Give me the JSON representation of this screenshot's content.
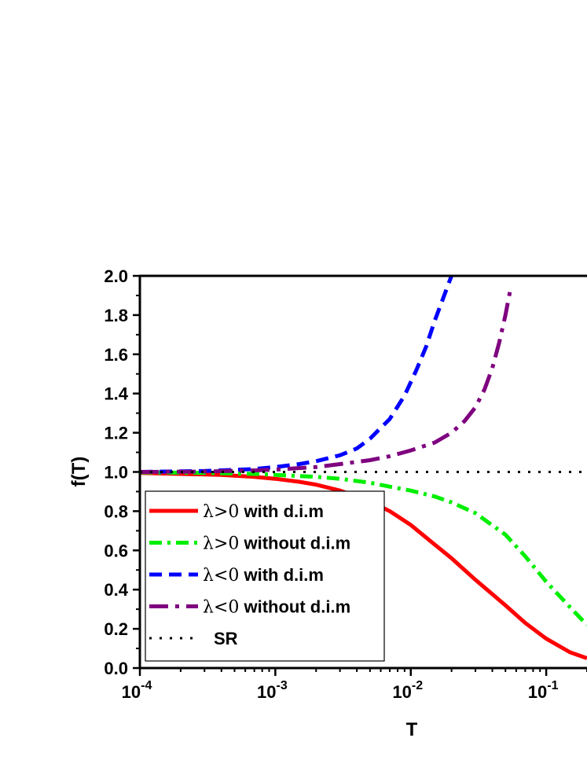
{
  "chart_data": {
    "type": "line",
    "xlabel": "T",
    "ylabel": "f(T)",
    "x_scale": "log",
    "xlim": [
      0.0001,
      0.2
    ],
    "ylim": [
      0.0,
      2.0
    ],
    "x_ticks": [
      {
        "value": 0.0001,
        "base": "10",
        "exp": "-4"
      },
      {
        "value": 0.001,
        "base": "10",
        "exp": "-3"
      },
      {
        "value": 0.01,
        "base": "10",
        "exp": "-2"
      },
      {
        "value": 0.1,
        "base": "10",
        "exp": "-1"
      }
    ],
    "y_ticks": [
      "0.0",
      "0.2",
      "0.4",
      "0.6",
      "0.8",
      "1.0",
      "1.2",
      "1.4",
      "1.6",
      "1.8",
      "2.0"
    ],
    "legend_position": "bottom-left",
    "series": [
      {
        "name": "λ>0 with d.i.m",
        "legend_symbol": "λ>0",
        "legend_rest": " with d.i.m",
        "color": "#ff0000",
        "style": "solid",
        "points": [
          [
            0.0001,
            0.995
          ],
          [
            0.0002,
            0.99
          ],
          [
            0.0004,
            0.985
          ],
          [
            0.0007,
            0.975
          ],
          [
            0.001,
            0.965
          ],
          [
            0.0015,
            0.95
          ],
          [
            0.002,
            0.935
          ],
          [
            0.003,
            0.905
          ],
          [
            0.005,
            0.85
          ],
          [
            0.007,
            0.8
          ],
          [
            0.01,
            0.73
          ],
          [
            0.015,
            0.63
          ],
          [
            0.02,
            0.56
          ],
          [
            0.03,
            0.45
          ],
          [
            0.05,
            0.32
          ],
          [
            0.07,
            0.23
          ],
          [
            0.1,
            0.15
          ],
          [
            0.15,
            0.08
          ],
          [
            0.2,
            0.05
          ]
        ]
      },
      {
        "name": "λ>0 without d.i.m",
        "legend_symbol": "λ>0",
        "legend_rest": " without d.i.m",
        "color": "#00ee00",
        "style": "dashdot",
        "points": [
          [
            0.0001,
            0.998
          ],
          [
            0.0003,
            0.995
          ],
          [
            0.0007,
            0.99
          ],
          [
            0.001,
            0.985
          ],
          [
            0.002,
            0.975
          ],
          [
            0.003,
            0.965
          ],
          [
            0.005,
            0.945
          ],
          [
            0.007,
            0.925
          ],
          [
            0.01,
            0.905
          ],
          [
            0.015,
            0.875
          ],
          [
            0.02,
            0.845
          ],
          [
            0.03,
            0.79
          ],
          [
            0.05,
            0.68
          ],
          [
            0.07,
            0.57
          ],
          [
            0.1,
            0.44
          ],
          [
            0.15,
            0.31
          ],
          [
            0.2,
            0.22
          ]
        ]
      },
      {
        "name": "λ<0 with d.i.m",
        "legend_symbol": "λ<0",
        "legend_rest": " with d.i.m",
        "color": "#0000ff",
        "style": "dashed",
        "points": [
          [
            0.0001,
            1.0
          ],
          [
            0.0003,
            1.005
          ],
          [
            0.0007,
            1.015
          ],
          [
            0.001,
            1.025
          ],
          [
            0.0015,
            1.04
          ],
          [
            0.002,
            1.055
          ],
          [
            0.003,
            1.085
          ],
          [
            0.004,
            1.12
          ],
          [
            0.005,
            1.17
          ],
          [
            0.007,
            1.27
          ],
          [
            0.009,
            1.39
          ],
          [
            0.011,
            1.52
          ],
          [
            0.013,
            1.64
          ],
          [
            0.015,
            1.77
          ],
          [
            0.017,
            1.87
          ],
          [
            0.019,
            1.96
          ],
          [
            0.02,
            2.0
          ]
        ]
      },
      {
        "name": "λ<0 without d.i.m",
        "legend_symbol": "λ<0",
        "legend_rest": " without d.i.m",
        "color": "#7f007f",
        "style": "longdash",
        "points": [
          [
            0.0001,
            1.0
          ],
          [
            0.0003,
            1.002
          ],
          [
            0.0007,
            1.008
          ],
          [
            0.001,
            1.012
          ],
          [
            0.002,
            1.025
          ],
          [
            0.003,
            1.04
          ],
          [
            0.005,
            1.06
          ],
          [
            0.007,
            1.08
          ],
          [
            0.01,
            1.11
          ],
          [
            0.015,
            1.15
          ],
          [
            0.02,
            1.2
          ],
          [
            0.025,
            1.26
          ],
          [
            0.03,
            1.33
          ],
          [
            0.035,
            1.42
          ],
          [
            0.04,
            1.53
          ],
          [
            0.045,
            1.66
          ],
          [
            0.05,
            1.8
          ],
          [
            0.055,
            1.95
          ]
        ]
      },
      {
        "name": "SR",
        "legend_symbol": "",
        "legend_rest": "SR",
        "color": "#000000",
        "style": "dotted",
        "points": [
          [
            0.0001,
            1.0
          ],
          [
            0.2,
            1.0
          ]
        ]
      }
    ]
  }
}
